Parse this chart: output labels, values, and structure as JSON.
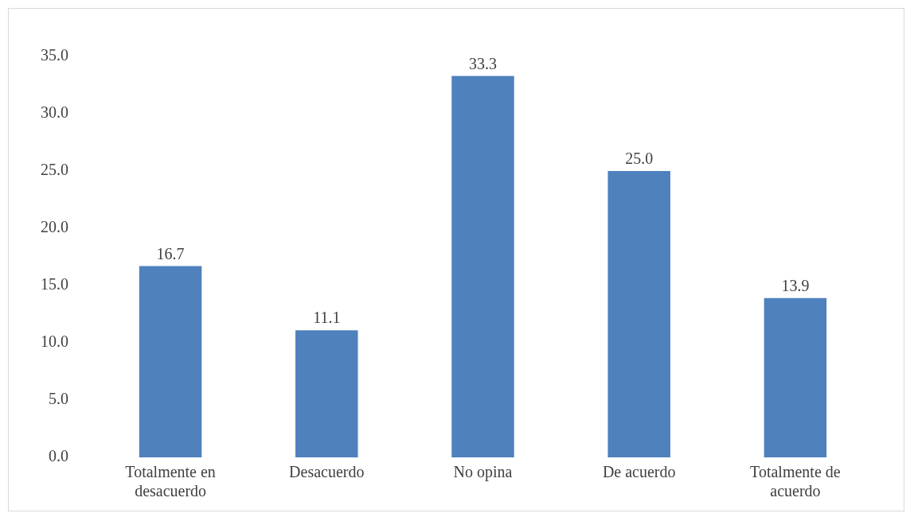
{
  "chart_data": {
    "type": "bar",
    "categories": [
      "Totalmente en desacuerdo",
      "Desacuerdo",
      "No opina",
      "De acuerdo",
      "Totalmente de acuerdo"
    ],
    "values": [
      16.7,
      11.1,
      33.3,
      25.0,
      13.9
    ],
    "value_labels": [
      "16.7",
      "11.1",
      "33.3",
      "25.0",
      "13.9"
    ],
    "color": "#4f81bd",
    "ylim": [
      0,
      35
    ],
    "yticks": [
      {
        "value": 0,
        "label": "0.0"
      },
      {
        "value": 5,
        "label": "5.0"
      },
      {
        "value": 10,
        "label": "10.0"
      },
      {
        "value": 15,
        "label": "15.0"
      },
      {
        "value": 20,
        "label": "20.0"
      },
      {
        "value": 25,
        "label": "25.0"
      },
      {
        "value": 30,
        "label": "30.0"
      },
      {
        "value": 35,
        "label": "35.0"
      }
    ],
    "grid": false,
    "legend": false
  }
}
